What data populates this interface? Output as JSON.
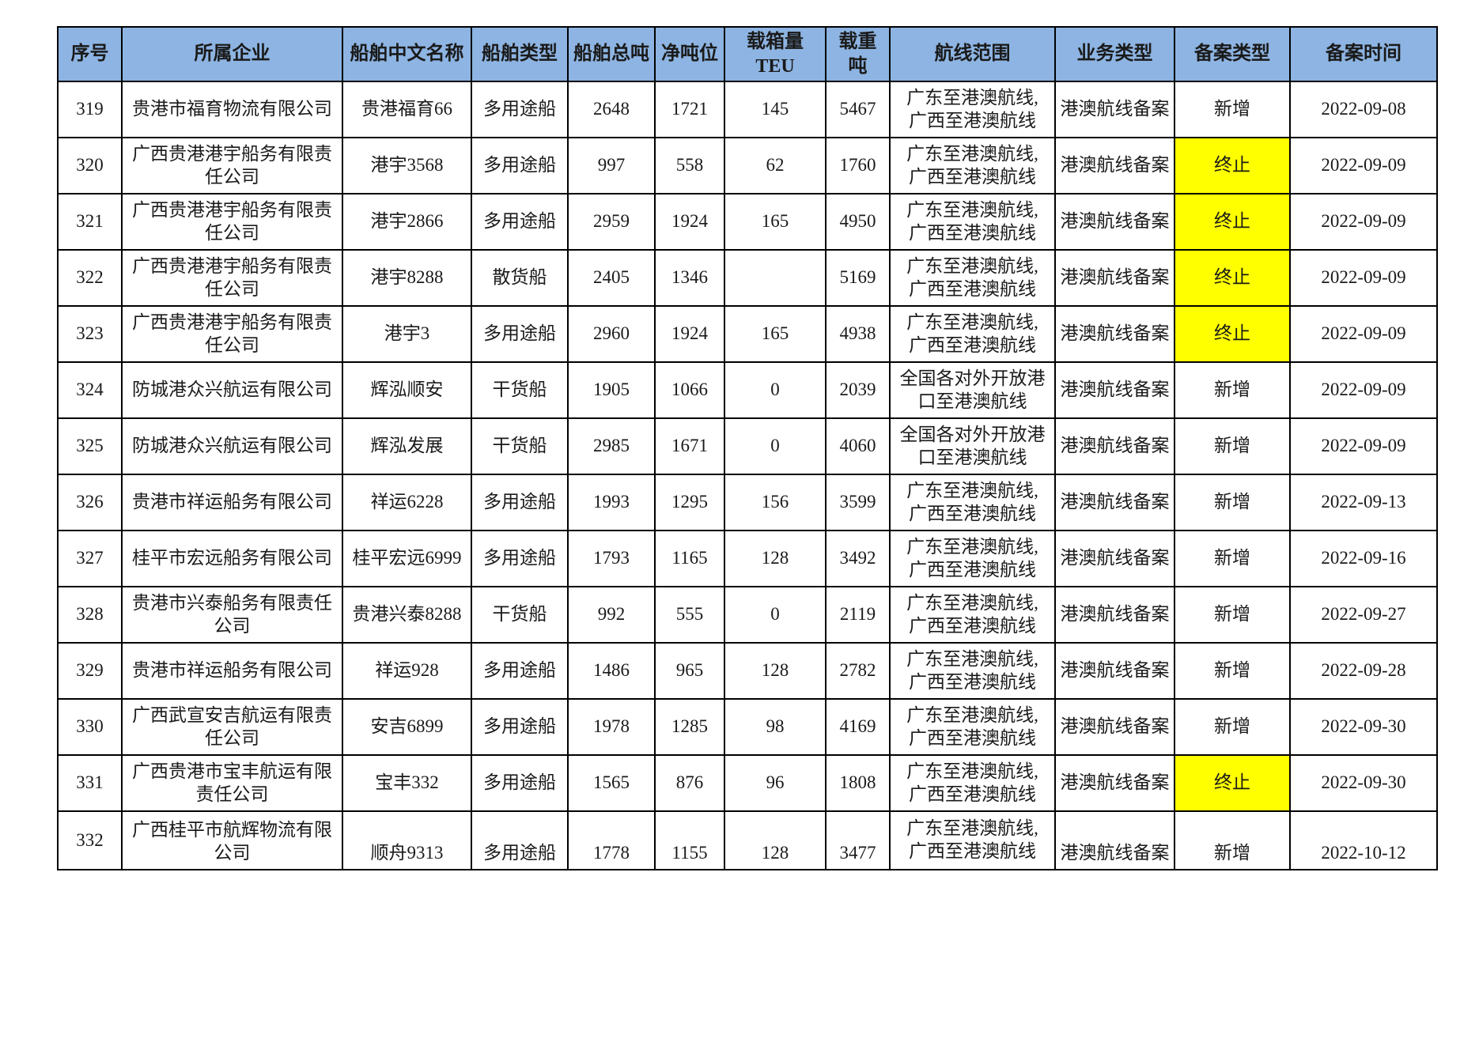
{
  "page": {
    "background": "#ffffff"
  },
  "table": {
    "header_bg": "#8DB4E2",
    "highlight_color": "#FFFF00",
    "border_color": "#000000",
    "columns": [
      {
        "key": "seq",
        "label": "序号"
      },
      {
        "key": "company",
        "label": "所属企业"
      },
      {
        "key": "ship_name",
        "label": "船舶中文名称"
      },
      {
        "key": "ship_type",
        "label": "船舶类型"
      },
      {
        "key": "gross_tonnage",
        "label": "船舶总吨"
      },
      {
        "key": "net_tonnage",
        "label": "净吨位"
      },
      {
        "key": "teu",
        "label": "载箱量TEU"
      },
      {
        "key": "deadweight",
        "label": "载重吨"
      },
      {
        "key": "route",
        "label": "航线范围"
      },
      {
        "key": "business_type",
        "label": "业务类型"
      },
      {
        "key": "filing_type",
        "label": "备案类型"
      },
      {
        "key": "filing_date",
        "label": "备案时间"
      }
    ],
    "rows": [
      {
        "seq": "319",
        "company": "贵港市福育物流有限公司",
        "ship_name": "贵港福育66",
        "ship_type": "多用途船",
        "gross_tonnage": "2648",
        "net_tonnage": "1721",
        "teu": "145",
        "deadweight": "5467",
        "route": "广东至港澳航线,\n广西至港澳航线",
        "business_type": "港澳航线备案",
        "filing_type": "新增",
        "filing_type_highlight": false,
        "filing_date": "2022-09-08"
      },
      {
        "seq": "320",
        "company": "广西贵港港宇船务有限责\n任公司",
        "ship_name": "港宇3568",
        "ship_type": "多用途船",
        "gross_tonnage": "997",
        "net_tonnage": "558",
        "teu": "62",
        "deadweight": "1760",
        "route": "广东至港澳航线,\n广西至港澳航线",
        "business_type": "港澳航线备案",
        "filing_type": "终止",
        "filing_type_highlight": true,
        "filing_date": "2022-09-09"
      },
      {
        "seq": "321",
        "company": "广西贵港港宇船务有限责\n任公司",
        "ship_name": "港宇2866",
        "ship_type": "多用途船",
        "gross_tonnage": "2959",
        "net_tonnage": "1924",
        "teu": "165",
        "deadweight": "4950",
        "route": "广东至港澳航线,\n广西至港澳航线",
        "business_type": "港澳航线备案",
        "filing_type": "终止",
        "filing_type_highlight": true,
        "filing_date": "2022-09-09"
      },
      {
        "seq": "322",
        "company": "广西贵港港宇船务有限责\n任公司",
        "ship_name": "港宇8288",
        "ship_type": "散货船",
        "gross_tonnage": "2405",
        "net_tonnage": "1346",
        "teu": "",
        "deadweight": "5169",
        "route": "广东至港澳航线,\n广西至港澳航线",
        "business_type": "港澳航线备案",
        "filing_type": "终止",
        "filing_type_highlight": true,
        "filing_date": "2022-09-09"
      },
      {
        "seq": "323",
        "company": "广西贵港港宇船务有限责\n任公司",
        "ship_name": "港宇3",
        "ship_type": "多用途船",
        "gross_tonnage": "2960",
        "net_tonnage": "1924",
        "teu": "165",
        "deadweight": "4938",
        "route": "广东至港澳航线,\n广西至港澳航线",
        "business_type": "港澳航线备案",
        "filing_type": "终止",
        "filing_type_highlight": true,
        "filing_date": "2022-09-09"
      },
      {
        "seq": "324",
        "company": "防城港众兴航运有限公司",
        "ship_name": "辉泓顺安",
        "ship_type": "干货船",
        "gross_tonnage": "1905",
        "net_tonnage": "1066",
        "teu": "0",
        "deadweight": "2039",
        "route": "全国各对外开放港\n口至港澳航线",
        "business_type": "港澳航线备案",
        "filing_type": "新增",
        "filing_type_highlight": false,
        "filing_date": "2022-09-09"
      },
      {
        "seq": "325",
        "company": "防城港众兴航运有限公司",
        "ship_name": "辉泓发展",
        "ship_type": "干货船",
        "gross_tonnage": "2985",
        "net_tonnage": "1671",
        "teu": "0",
        "deadweight": "4060",
        "route": "全国各对外开放港\n口至港澳航线",
        "business_type": "港澳航线备案",
        "filing_type": "新增",
        "filing_type_highlight": false,
        "filing_date": "2022-09-09"
      },
      {
        "seq": "326",
        "company": "贵港市祥运船务有限公司",
        "ship_name": "祥运6228",
        "ship_type": "多用途船",
        "gross_tonnage": "1993",
        "net_tonnage": "1295",
        "teu": "156",
        "deadweight": "3599",
        "route": "广东至港澳航线,\n广西至港澳航线",
        "business_type": "港澳航线备案",
        "filing_type": "新增",
        "filing_type_highlight": false,
        "filing_date": "2022-09-13"
      },
      {
        "seq": "327",
        "company": "桂平市宏远船务有限公司",
        "ship_name": "桂平宏远6999",
        "ship_type": "多用途船",
        "gross_tonnage": "1793",
        "net_tonnage": "1165",
        "teu": "128",
        "deadweight": "3492",
        "route": "广东至港澳航线,\n广西至港澳航线",
        "business_type": "港澳航线备案",
        "filing_type": "新增",
        "filing_type_highlight": false,
        "filing_date": "2022-09-16"
      },
      {
        "seq": "328",
        "company": "贵港市兴泰船务有限责任\n公司",
        "ship_name": "贵港兴泰8288",
        "ship_type": "干货船",
        "gross_tonnage": "992",
        "net_tonnage": "555",
        "teu": "0",
        "deadweight": "2119",
        "route": "广东至港澳航线,\n广西至港澳航线",
        "business_type": "港澳航线备案",
        "filing_type": "新增",
        "filing_type_highlight": false,
        "filing_date": "2022-09-27"
      },
      {
        "seq": "329",
        "company": "贵港市祥运船务有限公司",
        "ship_name": "祥运928",
        "ship_type": "多用途船",
        "gross_tonnage": "1486",
        "net_tonnage": "965",
        "teu": "128",
        "deadweight": "2782",
        "route": "广东至港澳航线,\n广西至港澳航线",
        "business_type": "港澳航线备案",
        "filing_type": "新增",
        "filing_type_highlight": false,
        "filing_date": "2022-09-28"
      },
      {
        "seq": "330",
        "company": "广西武宣安吉航运有限责\n任公司",
        "ship_name": "安吉6899",
        "ship_type": "多用途船",
        "gross_tonnage": "1978",
        "net_tonnage": "1285",
        "teu": "98",
        "deadweight": "4169",
        "route": "广东至港澳航线,\n广西至港澳航线",
        "business_type": "港澳航线备案",
        "filing_type": "新增",
        "filing_type_highlight": false,
        "filing_date": "2022-09-30"
      },
      {
        "seq": "331",
        "company": "广西贵港市宝丰航运有限\n责任公司",
        "ship_name": "宝丰332",
        "ship_type": "多用途船",
        "gross_tonnage": "1565",
        "net_tonnage": "876",
        "teu": "96",
        "deadweight": "1808",
        "route": "广东至港澳航线,\n广西至港澳航线",
        "business_type": "港澳航线备案",
        "filing_type": "终止",
        "filing_type_highlight": true,
        "filing_date": "2022-09-30"
      },
      {
        "seq": "332",
        "company": "广西桂平市航辉物流有限\n公司",
        "ship_name": "顺舟9313",
        "ship_type": "多用途船",
        "gross_tonnage": "1778",
        "net_tonnage": "1155",
        "teu": "128",
        "deadweight": "3477",
        "route": "广东至港澳航线,\n广西至港澳航线",
        "business_type": "港澳航线备案",
        "filing_type": "新增",
        "filing_type_highlight": false,
        "filing_date": "2022-10-12"
      }
    ]
  }
}
